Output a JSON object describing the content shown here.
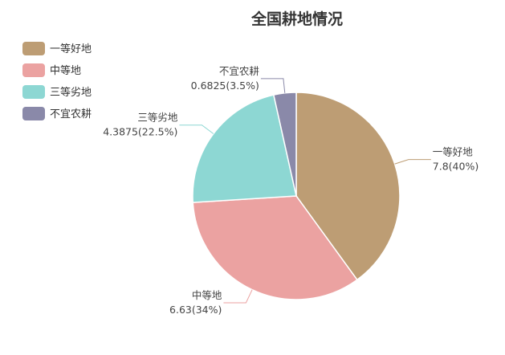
{
  "chart_data": {
    "type": "pie",
    "title": "全国耕地情况",
    "categories": [
      "一等好地",
      "中等地",
      "三等劣地",
      "不宜农耕"
    ],
    "values": [
      7.8,
      6.63,
      4.3875,
      0.6825
    ],
    "percent_labels": [
      "40%",
      "34%",
      "22.5%",
      "3.5%"
    ],
    "slice_labels": [
      "7.8(40%)",
      "6.63(34%)",
      "4.3875(22.5%)",
      "0.6825(3.5%)"
    ],
    "colors": [
      "#BD9D74",
      "#EBA2A1",
      "#8DD7D3",
      "#8A89A9"
    ],
    "legend_position": "top-left",
    "start_angle": "12 o'clock",
    "direction": "clockwise"
  }
}
